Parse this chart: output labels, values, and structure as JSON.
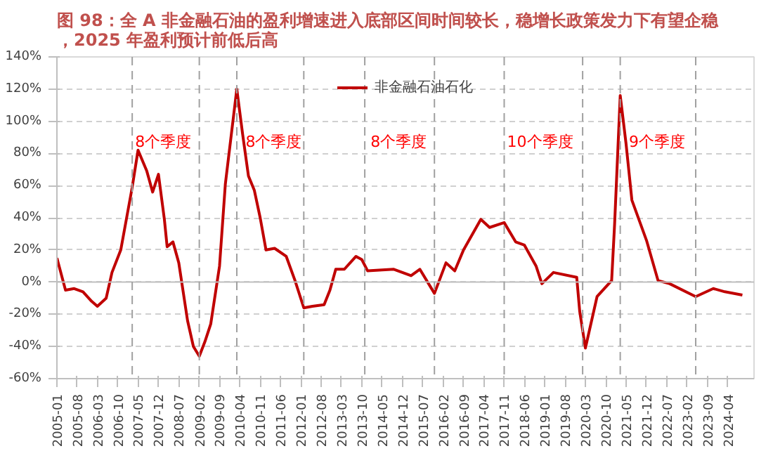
{
  "chart_data": {
    "type": "line",
    "title": "图 98：全 A 非金融石油的盈利增速进入底部区间时间较长，稳增长政策发力下有望企稳，2025 年盈利预计前低后高",
    "x": [
      "2005-01",
      "2005-04",
      "2005-07",
      "2005-10",
      "2006-01",
      "2006-03",
      "2006-06",
      "2006-08",
      "2006-11",
      "2007-03",
      "2007-05",
      "2007-08",
      "2007-10",
      "2007-12",
      "2008-02",
      "2008-03",
      "2008-05",
      "2008-07",
      "2008-10",
      "2008-12",
      "2009-02",
      "2009-04",
      "2009-06",
      "2009-09",
      "2009-11",
      "2010-03",
      "2010-05",
      "2010-07",
      "2010-09",
      "2010-11",
      "2011-01",
      "2011-04",
      "2011-08",
      "2011-11",
      "2012-02",
      "2012-05",
      "2012-09",
      "2012-11",
      "2013-01",
      "2013-04",
      "2013-08",
      "2013-10",
      "2013-12",
      "2014-09",
      "2015-03",
      "2015-06",
      "2015-11",
      "2016-03",
      "2016-06",
      "2016-09",
      "2017-03",
      "2017-06",
      "2017-11",
      "2018-03",
      "2018-06",
      "2018-10",
      "2018-12",
      "2019-04",
      "2019-12",
      "2020-01",
      "2020-03",
      "2020-07",
      "2020-12",
      "2021-01",
      "2021-03",
      "2021-05",
      "2021-07",
      "2021-12",
      "2022-04",
      "2022-08",
      "2023-05",
      "2023-11",
      "2024-03",
      "2024-09"
    ],
    "series": [
      {
        "name": "非金融石油石化",
        "color": "#c00000",
        "values": [
          15,
          -5,
          -4,
          -6,
          -12,
          -15,
          -10,
          6,
          20,
          59,
          82,
          69,
          56,
          67,
          39,
          22,
          25,
          12,
          -24,
          -40,
          -46,
          -37,
          -26,
          10,
          61,
          120,
          92,
          66,
          57,
          40,
          20,
          21,
          16,
          1,
          -16,
          -15,
          -14,
          -5,
          8,
          8,
          16,
          14,
          7,
          8,
          4,
          8,
          -7,
          12,
          7,
          20,
          39,
          34,
          37,
          25,
          23,
          10,
          -1,
          6,
          3,
          -18,
          -41,
          -9,
          1,
          36,
          116,
          86,
          51,
          26,
          1,
          -1,
          -9,
          -4,
          -6,
          -8
        ]
      }
    ],
    "xlim": [
      "2005-01",
      "2025-01"
    ],
    "xticks": [
      "2005-01",
      "2005-08",
      "2006-03",
      "2006-10",
      "2007-05",
      "2007-12",
      "2008-07",
      "2009-02",
      "2009-09",
      "2010-04",
      "2010-11",
      "2011-06",
      "2012-01",
      "2012-08",
      "2013-03",
      "2013-10",
      "2014-05",
      "2014-12",
      "2015-07",
      "2016-02",
      "2016-09",
      "2017-04",
      "2017-11",
      "2018-06",
      "2019-01",
      "2019-08",
      "2020-03",
      "2020-10",
      "2021-05",
      "2021-12",
      "2022-07",
      "2023-02",
      "2023-09",
      "2024-04"
    ],
    "ylim": [
      -60,
      140
    ],
    "yticks": [
      {
        "value": -60,
        "label": "-60%"
      },
      {
        "value": -40,
        "label": "-40%"
      },
      {
        "value": -20,
        "label": "-20%"
      },
      {
        "value": 0,
        "label": "0%"
      },
      {
        "value": 20,
        "label": "20%"
      },
      {
        "value": 40,
        "label": "40%"
      },
      {
        "value": 60,
        "label": "60%"
      },
      {
        "value": 80,
        "label": "80%"
      },
      {
        "value": 100,
        "label": "100%"
      },
      {
        "value": 120,
        "label": "120%"
      },
      {
        "value": 140,
        "label": "140%"
      }
    ],
    "grid": "y",
    "legend": "top",
    "marker": "none",
    "line_style": "solid",
    "ref_lines": [
      {
        "axis": "x",
        "value": "2007-03",
        "label": null,
        "color": "#a0a0a0",
        "line_style": "dashed"
      },
      {
        "axis": "x",
        "value": "2009-02",
        "label": null,
        "color": "#a0a0a0",
        "line_style": "dashed"
      },
      {
        "axis": "x",
        "value": "2010-03",
        "label": null,
        "color": "#a0a0a0",
        "line_style": "dashed"
      },
      {
        "axis": "x",
        "value": "2012-02",
        "label": null,
        "color": "#a0a0a0",
        "line_style": "dashed"
      },
      {
        "axis": "x",
        "value": "2013-11",
        "label": null,
        "color": "#a0a0a0",
        "line_style": "dashed"
      },
      {
        "axis": "x",
        "value": "2015-11",
        "label": null,
        "color": "#a0a0a0",
        "line_style": "dashed"
      },
      {
        "axis": "x",
        "value": "2017-11",
        "label": null,
        "color": "#a0a0a0",
        "line_style": "dashed"
      },
      {
        "axis": "x",
        "value": "2020-02",
        "label": null,
        "color": "#a0a0a0",
        "line_style": "dashed"
      },
      {
        "axis": "x",
        "value": "2021-03",
        "label": null,
        "color": "#a0a0a0",
        "line_style": "dashed"
      },
      {
        "axis": "x",
        "value": "2023-05",
        "label": null,
        "color": "#a0a0a0",
        "line_style": "dashed"
      }
    ],
    "annotations": [
      {
        "text": "8个季度",
        "x": "2007-04",
        "y": 87
      },
      {
        "text": "8个季度",
        "x": "2010-06",
        "y": 87
      },
      {
        "text": "8个季度",
        "x": "2014-01",
        "y": 87
      },
      {
        "text": "10个季度",
        "x": "2017-12",
        "y": 87
      },
      {
        "text": "9个季度",
        "x": "2021-06",
        "y": 87
      }
    ]
  }
}
